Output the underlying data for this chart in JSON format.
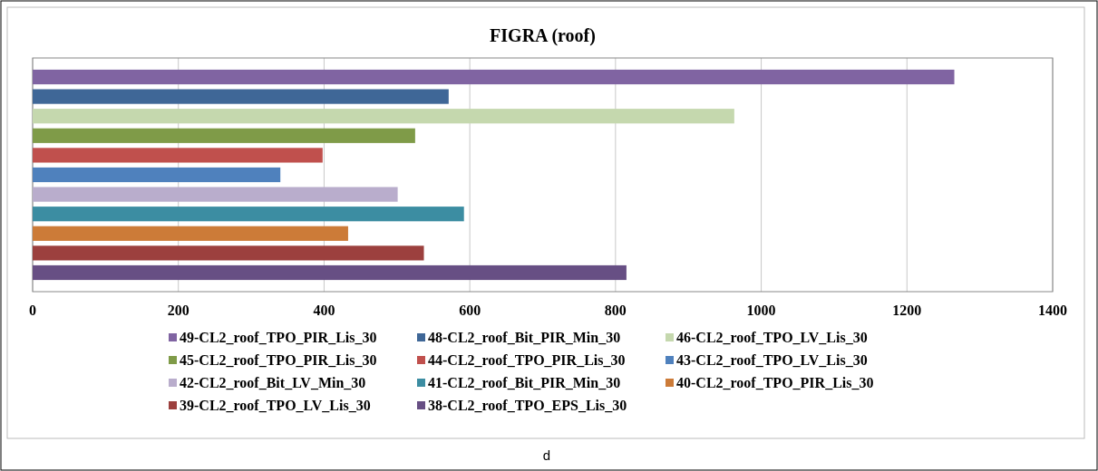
{
  "chart_data": {
    "type": "bar",
    "orientation": "horizontal",
    "title": "FIGRA (roof)",
    "categories": [
      null
    ],
    "series": [
      {
        "name": "49-CL2_roof_TPO_PIR_Lis_30",
        "color": "#8064a2",
        "values": [
          1265
        ]
      },
      {
        "name": "48-CL2_roof_Bit_PIR_Min_30",
        "color": "#3f6797",
        "values": [
          571
        ]
      },
      {
        "name": "46-CL2_roof_TPO_LV_Lis_30",
        "color": "#c5d8ae",
        "values": [
          963
        ]
      },
      {
        "name": "45-CL2_roof_TPO_PIR_Lis_30",
        "color": "#7f9b48",
        "values": [
          525
        ]
      },
      {
        "name": "44-CL2_roof_TPO_PIR_Lis_30",
        "color": "#c0504d",
        "values": [
          398
        ]
      },
      {
        "name": "43-CL2_roof_TPO_LV_Lis_30",
        "color": "#4f81bd",
        "values": [
          340
        ]
      },
      {
        "name": "42-CL2_roof_Bit_LV_Min_30",
        "color": "#b9adcc",
        "values": [
          501
        ]
      },
      {
        "name": "41-CL2_roof_Bit_PIR_Min_30",
        "color": "#3c8da2",
        "values": [
          592
        ]
      },
      {
        "name": "40-CL2_roof_TPO_PIR_Lis_30",
        "color": "#cc7b38",
        "values": [
          433
        ]
      },
      {
        "name": "39-CL2_roof_TPO_LV_Lis_30",
        "color": "#9c403e",
        "values": [
          537
        ]
      },
      {
        "name": "38-CL2_roof_TPO_EPS_Lis_30",
        "color": "#674f84",
        "values": [
          815
        ]
      }
    ],
    "xlim": [
      0,
      1400
    ],
    "xticks": [
      0,
      200,
      400,
      600,
      800,
      1000,
      1200,
      1400
    ],
    "grid": "x",
    "legend": "bottom",
    "annotations": [
      "d"
    ]
  }
}
